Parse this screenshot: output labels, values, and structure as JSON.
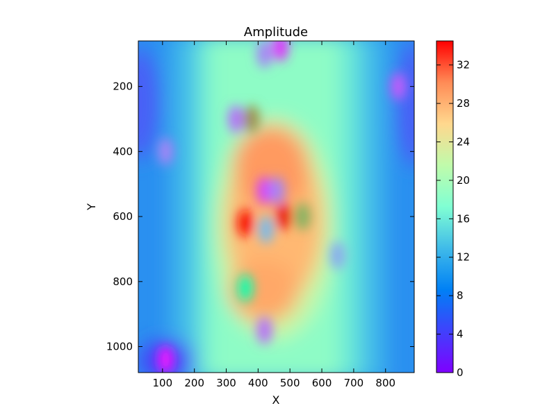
{
  "chart_data": {
    "type": "heatmap",
    "title": "Amplitude",
    "xlabel": "X",
    "ylabel": "Y",
    "colormap": "rainbow",
    "xlim": [
      24,
      890
    ],
    "ylim": [
      1080,
      60
    ],
    "x_ticks": [
      "100",
      "200",
      "300",
      "400",
      "500",
      "600",
      "700",
      "800"
    ],
    "y_ticks": [
      "200",
      "400",
      "600",
      "800",
      "1000"
    ],
    "colorbar": {
      "min": 0,
      "max": 34.5,
      "ticks": [
        "0",
        "4",
        "8",
        "12",
        "16",
        "20",
        "24",
        "28",
        "32"
      ]
    },
    "features": [
      {
        "x": 360,
        "y": 620,
        "value": 34
      },
      {
        "x": 480,
        "y": 600,
        "value": 33
      },
      {
        "x": 420,
        "y": 520,
        "value": 3
      },
      {
        "x": 460,
        "y": 520,
        "value": 6
      },
      {
        "x": 425,
        "y": 640,
        "value": 9
      },
      {
        "x": 330,
        "y": 300,
        "value": 5
      },
      {
        "x": 380,
        "y": 300,
        "value": 28
      },
      {
        "x": 420,
        "y": 950,
        "value": 5
      },
      {
        "x": 110,
        "y": 1040,
        "value": 1
      },
      {
        "x": 110,
        "y": 400,
        "value": 6
      },
      {
        "x": 470,
        "y": 80,
        "value": 2
      },
      {
        "x": 420,
        "y": 100,
        "value": 6
      },
      {
        "x": 840,
        "y": 200,
        "value": 4
      },
      {
        "x": 650,
        "y": 720,
        "value": 8
      },
      {
        "x": 360,
        "y": 820,
        "value": 18
      },
      {
        "x": 540,
        "y": 600,
        "value": 26
      }
    ]
  }
}
